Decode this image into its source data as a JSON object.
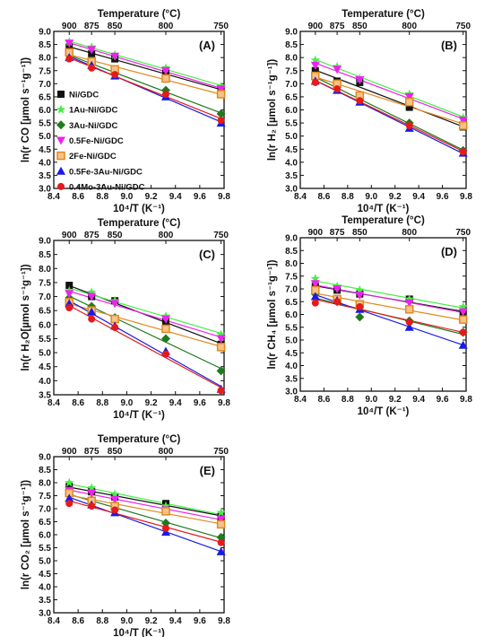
{
  "chart_data": [
    {
      "panel": "(A)",
      "type": "scatter",
      "ylabel": "ln(r CO [µmol s⁻¹g⁻¹])",
      "xlabel": "10⁴/T (K⁻¹)",
      "x2label": "Temperature (°C)",
      "xlim": [
        8.4,
        9.8
      ],
      "ylim": [
        3.0,
        9.0
      ],
      "xticks": [
        "8.4",
        "8.6",
        "8.8",
        "9.0",
        "9.2",
        "9.4",
        "9.6",
        "9.8"
      ],
      "yticks": [
        "3.0",
        "3.5",
        "4.0",
        "4.5",
        "5.0",
        "5.5",
        "6.0",
        "6.5",
        "7.0",
        "7.5",
        "8.0",
        "8.5",
        "9.0"
      ],
      "x2ticks": [
        "900",
        "875",
        "850",
        "800",
        "750"
      ],
      "x2tick_positions": [
        8.527,
        8.711,
        8.902,
        9.321,
        9.775
      ],
      "x": [
        8.527,
        8.711,
        8.902,
        9.321,
        9.775
      ],
      "fit_lines": true,
      "series": [
        {
          "name": "Ni/GDC",
          "marker": "square",
          "color": "#111111",
          "values": [
            8.4,
            8.15,
            7.95,
            7.4,
            6.75
          ]
        },
        {
          "name": "1Au-Ni/GDC",
          "marker": "star",
          "color": "#44ee44",
          "values": [
            8.6,
            8.4,
            8.1,
            7.6,
            6.9
          ]
        },
        {
          "name": "3Au-Ni/GDC",
          "marker": "diamond",
          "color": "#1f7a1f",
          "values": [
            8.1,
            7.75,
            7.4,
            6.75,
            5.85
          ]
        },
        {
          "name": "0.5Fe-Ni/GDC",
          "marker": "triangle-down",
          "color": "#ee22ee",
          "values": [
            8.55,
            8.3,
            8.05,
            7.5,
            6.8
          ]
        },
        {
          "name": "2Fe-Ni/GDC",
          "marker": "square-open",
          "color": "#e08a1e",
          "values": [
            8.2,
            7.85,
            7.55,
            7.2,
            6.6
          ]
        },
        {
          "name": "0.5Fe-3Au-Ni/GDC",
          "marker": "triangle-up",
          "color": "#1a1ae6",
          "values": [
            8.0,
            7.7,
            7.3,
            6.5,
            5.5
          ]
        },
        {
          "name": "0.4Mo-3Au-Ni/GDC",
          "marker": "circle",
          "color": "#e61a1a",
          "values": [
            7.95,
            7.6,
            7.35,
            6.6,
            5.6
          ]
        }
      ]
    },
    {
      "panel": "(B)",
      "type": "scatter",
      "ylabel": "ln(r H₂ [µmol s⁻¹g⁻¹])",
      "xlabel": "10⁴/T (K⁻¹)",
      "x2label": "Temperature (°C)",
      "xlim": [
        8.4,
        9.8
      ],
      "ylim": [
        3.0,
        9.0
      ],
      "xticks": [
        "8.4",
        "8.6",
        "8.8",
        "9.0",
        "9.2",
        "9.4",
        "9.6",
        "9.8"
      ],
      "yticks": [
        "3.0",
        "3.5",
        "4.0",
        "4.5",
        "5.0",
        "5.5",
        "6.0",
        "6.5",
        "7.0",
        "7.5",
        "8.0",
        "8.5",
        "9.0"
      ],
      "x2ticks": [
        "900",
        "875",
        "850",
        "800",
        "750"
      ],
      "x2tick_positions": [
        8.527,
        8.711,
        8.902,
        9.321,
        9.775
      ],
      "x": [
        8.527,
        8.711,
        8.902,
        9.321,
        9.775
      ],
      "fit_lines": true,
      "series": [
        {
          "name": "Ni/GDC",
          "marker": "square",
          "color": "#111111",
          "values": [
            7.5,
            7.1,
            7.05,
            6.1,
            5.35
          ]
        },
        {
          "name": "1Au-Ni/GDC",
          "marker": "star",
          "color": "#44ee44",
          "values": [
            7.9,
            7.65,
            7.2,
            6.6,
            5.7
          ]
        },
        {
          "name": "3Au-Ni/GDC",
          "marker": "diamond",
          "color": "#1f7a1f",
          "values": [
            7.2,
            6.9,
            6.4,
            5.5,
            4.45
          ]
        },
        {
          "name": "0.5Fe-Ni/GDC",
          "marker": "triangle-down",
          "color": "#ee22ee",
          "values": [
            7.7,
            7.55,
            7.15,
            6.5,
            5.6
          ]
        },
        {
          "name": "2Fe-Ni/GDC",
          "marker": "square-open",
          "color": "#e08a1e",
          "values": [
            7.3,
            7.0,
            6.55,
            6.3,
            5.4
          ]
        },
        {
          "name": "0.5Fe-3Au-Ni/GDC",
          "marker": "triangle-up",
          "color": "#1a1ae6",
          "values": [
            7.1,
            6.75,
            6.3,
            5.3,
            4.35
          ]
        },
        {
          "name": "0.4Mo-3Au-Ni/GDC",
          "marker": "circle",
          "color": "#e61a1a",
          "values": [
            7.05,
            6.8,
            6.35,
            5.4,
            4.4
          ]
        }
      ]
    },
    {
      "panel": "(C)",
      "type": "scatter",
      "ylabel": "ln(r H₂O[µmol s⁻¹g⁻¹])",
      "xlabel": "10⁴/T (K⁻¹)",
      "x2label": "Temperature (°C)",
      "xlim": [
        8.4,
        9.8
      ],
      "ylim": [
        3.5,
        9.0
      ],
      "xticks": [
        "8.4",
        "8.6",
        "8.8",
        "9.0",
        "9.2",
        "9.4",
        "9.6",
        "9.8"
      ],
      "yticks": [
        "3.5",
        "4.0",
        "4.5",
        "5.0",
        "5.5",
        "6.0",
        "6.5",
        "7.0",
        "7.5",
        "8.0",
        "8.5",
        "9.0"
      ],
      "x2ticks": [
        "900",
        "875",
        "850",
        "800",
        "750"
      ],
      "x2tick_positions": [
        8.527,
        8.711,
        8.902,
        9.321,
        9.775
      ],
      "x": [
        8.527,
        8.711,
        8.902,
        9.321,
        9.775
      ],
      "fit_lines": true,
      "series": [
        {
          "name": "Ni/GDC",
          "marker": "square",
          "color": "#111111",
          "values": [
            7.4,
            7.0,
            6.85,
            6.1,
            5.3
          ]
        },
        {
          "name": "1Au-Ni/GDC",
          "marker": "star",
          "color": "#44ee44",
          "values": [
            7.2,
            7.15,
            6.85,
            6.3,
            5.65
          ]
        },
        {
          "name": "3Au-Ni/GDC",
          "marker": "diamond",
          "color": "#1f7a1f",
          "values": [
            6.95,
            6.65,
            6.25,
            5.5,
            4.35
          ]
        },
        {
          "name": "0.5Fe-Ni/GDC",
          "marker": "triangle-down",
          "color": "#ee22ee",
          "values": [
            7.1,
            7.0,
            6.75,
            6.2,
            5.5
          ]
        },
        {
          "name": "2Fe-Ni/GDC",
          "marker": "square-open",
          "color": "#e08a1e",
          "values": [
            6.8,
            6.5,
            6.2,
            5.85,
            5.2
          ]
        },
        {
          "name": "0.5Fe-3Au-Ni/GDC",
          "marker": "triangle-up",
          "color": "#1a1ae6",
          "values": [
            6.75,
            6.45,
            5.95,
            5.05,
            3.7
          ]
        },
        {
          "name": "0.4Mo-3Au-Ni/GDC",
          "marker": "circle",
          "color": "#e61a1a",
          "values": [
            6.6,
            6.2,
            5.9,
            4.95,
            3.65
          ]
        }
      ]
    },
    {
      "panel": "(D)",
      "type": "scatter",
      "ylabel": "ln(r CH₄ [µmol s⁻¹g⁻¹])",
      "xlabel": "10⁴/T (K⁻¹)",
      "x2label": "Temperature (°C)",
      "xlim": [
        8.4,
        9.8
      ],
      "ylim": [
        3.0,
        9.0
      ],
      "xticks": [
        "8.4",
        "8.6",
        "8.8",
        "9.0",
        "9.2",
        "9.4",
        "9.6",
        "9.8"
      ],
      "yticks": [
        "3.0",
        "3.5",
        "4.0",
        "4.5",
        "5.0",
        "5.5",
        "6.0",
        "6.5",
        "7.0",
        "7.5",
        "8.0",
        "8.5",
        "9.0"
      ],
      "x2ticks": [
        "900",
        "875",
        "850",
        "800",
        "750"
      ],
      "x2tick_positions": [
        8.527,
        8.711,
        8.902,
        9.321,
        9.775
      ],
      "x": [
        8.527,
        8.711,
        8.902,
        9.321,
        9.775
      ],
      "fit_lines": true,
      "series": [
        {
          "name": "Ni/GDC",
          "marker": "square",
          "color": "#111111",
          "values": [
            7.1,
            6.95,
            6.8,
            6.6,
            6.05
          ]
        },
        {
          "name": "1Au-Ni/GDC",
          "marker": "star",
          "color": "#44ee44",
          "values": [
            7.4,
            7.1,
            6.95,
            6.6,
            6.3
          ]
        },
        {
          "name": "3Au-Ni/GDC",
          "marker": "diamond",
          "color": "#1f7a1f",
          "values": [
            6.8,
            6.5,
            5.9,
            5.75,
            5.3
          ]
        },
        {
          "name": "0.5Fe-Ni/GDC",
          "marker": "triangle-down",
          "color": "#ee22ee",
          "values": [
            7.2,
            7.0,
            6.75,
            6.45,
            6.1
          ]
        },
        {
          "name": "2Fe-Ni/GDC",
          "marker": "square-open",
          "color": "#e08a1e",
          "values": [
            6.95,
            6.6,
            6.4,
            6.2,
            5.8
          ]
        },
        {
          "name": "0.5Fe-3Au-Ni/GDC",
          "marker": "triangle-up",
          "color": "#1a1ae6",
          "values": [
            6.7,
            6.55,
            6.2,
            5.5,
            4.8
          ]
        },
        {
          "name": "0.4Mo-3Au-Ni/GDC",
          "marker": "circle",
          "color": "#e61a1a",
          "values": [
            6.45,
            6.5,
            6.3,
            5.7,
            5.3
          ]
        }
      ]
    },
    {
      "panel": "(E)",
      "type": "scatter",
      "ylabel": "ln(r CO₂ [µmol s⁻¹g⁻¹])",
      "xlabel": "10⁴/T (K⁻¹)",
      "x2label": "Temperature (°C)",
      "xlim": [
        8.4,
        9.8
      ],
      "ylim": [
        3.0,
        9.0
      ],
      "xticks": [
        "8.4",
        "8.6",
        "8.8",
        "9.0",
        "9.2",
        "9.4",
        "9.6",
        "9.8"
      ],
      "yticks": [
        "3.0",
        "3.5",
        "4.0",
        "4.5",
        "5.0",
        "5.5",
        "6.0",
        "6.5",
        "7.0",
        "7.5",
        "8.0",
        "8.5",
        "9.0"
      ],
      "x2ticks": [
        "900",
        "875",
        "850",
        "800",
        "750"
      ],
      "x2tick_positions": [
        8.527,
        8.711,
        8.902,
        9.321,
        9.775
      ],
      "x": [
        8.527,
        8.711,
        8.902,
        9.321,
        9.775
      ],
      "fit_lines": true,
      "series": [
        {
          "name": "Ni/GDC",
          "marker": "square",
          "color": "#111111",
          "values": [
            7.85,
            7.65,
            7.45,
            7.2,
            6.7
          ]
        },
        {
          "name": "1Au-Ni/GDC",
          "marker": "star",
          "color": "#44ee44",
          "values": [
            8.0,
            7.8,
            7.55,
            7.1,
            6.85
          ]
        },
        {
          "name": "3Au-Ni/GDC",
          "marker": "diamond",
          "color": "#1f7a1f",
          "values": [
            7.55,
            7.35,
            7.0,
            6.45,
            5.9
          ]
        },
        {
          "name": "0.5Fe-Ni/GDC",
          "marker": "triangle-down",
          "color": "#ee22ee",
          "values": [
            7.7,
            7.6,
            7.35,
            6.95,
            6.6
          ]
        },
        {
          "name": "2Fe-Ni/GDC",
          "marker": "square-open",
          "color": "#e08a1e",
          "values": [
            7.6,
            7.3,
            7.1,
            6.9,
            6.4
          ]
        },
        {
          "name": "0.5Fe-3Au-Ni/GDC",
          "marker": "triangle-up",
          "color": "#1a1ae6",
          "values": [
            7.4,
            7.15,
            6.85,
            6.1,
            5.35
          ]
        },
        {
          "name": "0.4Mo-3Au-Ni/GDC",
          "marker": "circle",
          "color": "#e61a1a",
          "values": [
            7.2,
            7.1,
            6.95,
            6.25,
            5.7
          ]
        }
      ]
    }
  ]
}
